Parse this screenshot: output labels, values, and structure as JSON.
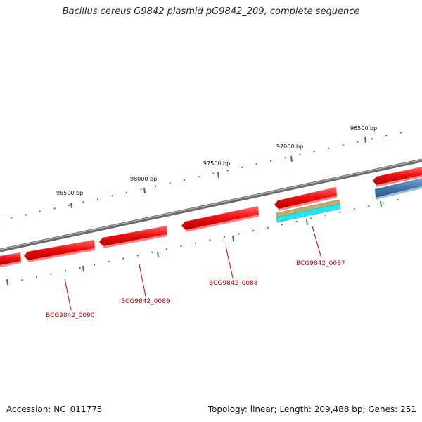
{
  "title": "Bacillus cereus G9842 plasmid pG9842_209, complete sequence",
  "footer": {
    "accession": "Accession: NC_011775",
    "summary": "Topology: linear; Length: 209,488 bp; Genes: 251"
  },
  "colors": {
    "backbone": "#808080",
    "gene_red": "#ee1111",
    "gene_blue": "#4477aa",
    "gene_tan": "#b8ae72",
    "gene_cyan": "#22e5f5",
    "tick": "#2a8a2a",
    "label_red": "#cc0000"
  },
  "scale": {
    "ticks": [
      {
        "label": "96500 bp"
      },
      {
        "label": "97000 bp"
      },
      {
        "label": "97500 bp"
      },
      {
        "label": "98000 bp"
      },
      {
        "label": "98500 bp"
      }
    ]
  },
  "genes": [
    {
      "label": "BCG9842_0087"
    },
    {
      "label": "BCG9842_0088"
    },
    {
      "label": "BCG9842_0089"
    },
    {
      "label": "BCG9842_0090"
    }
  ]
}
